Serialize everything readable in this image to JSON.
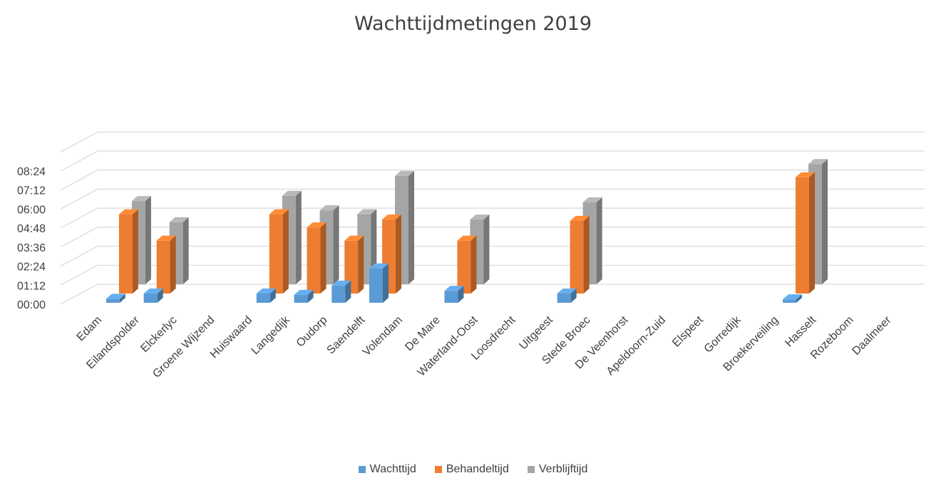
{
  "chart_data": {
    "type": "bar",
    "style": "3d-clustered-column",
    "title": "Wachttijdmetingen 2019",
    "xlabel": "",
    "ylabel": "",
    "y_unit": "hh:mm",
    "ylim_minutes": [
      0,
      576
    ],
    "y_ticks": [
      "00:00",
      "01:12",
      "02:24",
      "03:36",
      "04:48",
      "06:00",
      "07:12",
      "08:24"
    ],
    "grid": true,
    "legend_position": "bottom",
    "categories": [
      "Edam",
      "Eilandspolder",
      "Elckerlyc",
      "Groene Wijzend",
      "Huiswaard",
      "Langedijk",
      "Oudorp",
      "Saendelft",
      "Volendam",
      "De Mare",
      "Waterland-Oost",
      "Loosdrecht",
      "Uitgeest",
      "Stede Broec",
      "De Veenhorst",
      "Apeldoorn-Zuid",
      "Elspeet",
      "Gorredijk",
      "Broekerveiling",
      "Hasselt",
      "Rozeboom",
      "Daalmeer"
    ],
    "series": [
      {
        "name": "Wachttijd",
        "color": "#5B9BD5",
        "values": [
          0,
          15,
          35,
          0,
          0,
          35,
          30,
          65,
          130,
          0,
          45,
          0,
          0,
          35,
          0,
          0,
          0,
          0,
          0,
          13,
          0,
          0
        ]
      },
      {
        "name": "Behandeltijd",
        "color": "#ED7D31",
        "values": [
          0,
          300,
          200,
          0,
          0,
          300,
          250,
          200,
          280,
          0,
          200,
          0,
          0,
          275,
          0,
          0,
          0,
          0,
          0,
          440,
          0,
          0
        ]
      },
      {
        "name": "Verblijftijd",
        "color": "#A5A5A5",
        "values": [
          0,
          315,
          235,
          0,
          0,
          335,
          280,
          265,
          410,
          0,
          245,
          0,
          0,
          310,
          0,
          0,
          0,
          0,
          0,
          455,
          0,
          0
        ]
      }
    ]
  }
}
